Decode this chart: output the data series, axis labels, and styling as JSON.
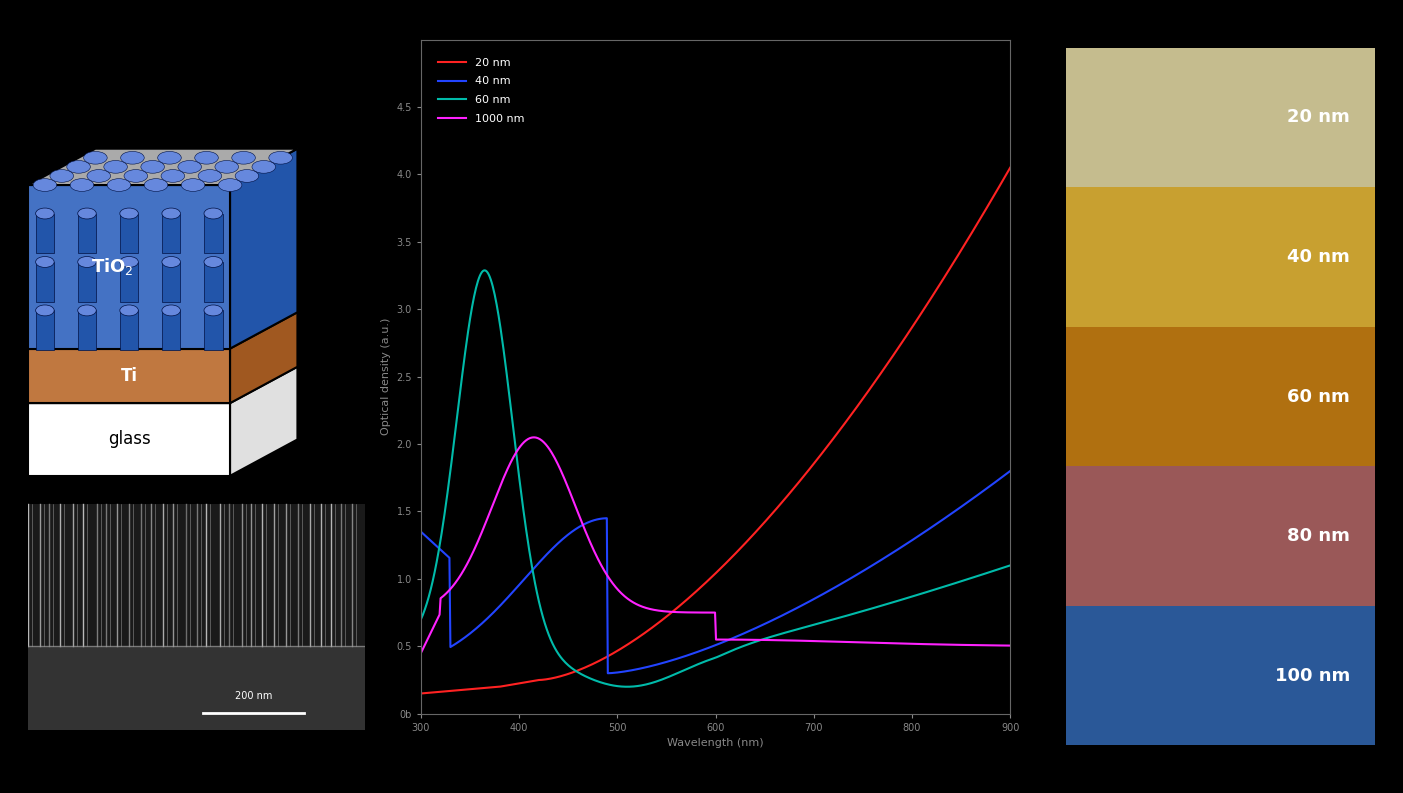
{
  "background_color": "#000000",
  "line_colors": [
    "#ff2222",
    "#2244ff",
    "#00bbaa",
    "#ff22ff"
  ],
  "legend_labels": [
    "20 nm",
    "40 nm",
    "60 nm",
    "1000 nm"
  ],
  "wavelength_min": 300,
  "wavelength_max": 900,
  "ylabel": "Optical density (a.u.)",
  "xlabel": "Wavelength (nm)",
  "ytick_labels": [
    "0b",
    "0.5",
    "1.0",
    "1.5",
    "2.0",
    "2.5",
    "3.0",
    "3.5",
    "4.0",
    "4.5"
  ],
  "color_panel_labels": [
    "20 nm",
    "40 nm",
    "60 nm",
    "80 nm",
    "100 nm"
  ],
  "color_panel_colors": [
    "#c5bc8e",
    "#c8a030",
    "#b07010",
    "#9a5858",
    "#2a5898"
  ],
  "diagram_tio2_color": "#4472c4",
  "diagram_tio2_dark": "#2255aa",
  "diagram_tio2_light": "#6688dd",
  "diagram_tio2_top": "#aaaaaa",
  "diagram_ti_color": "#c07840",
  "diagram_ti_dark": "#a05820",
  "diagram_glass_color": "#ffffff",
  "diagram_glass_side": "#e0e0e0"
}
